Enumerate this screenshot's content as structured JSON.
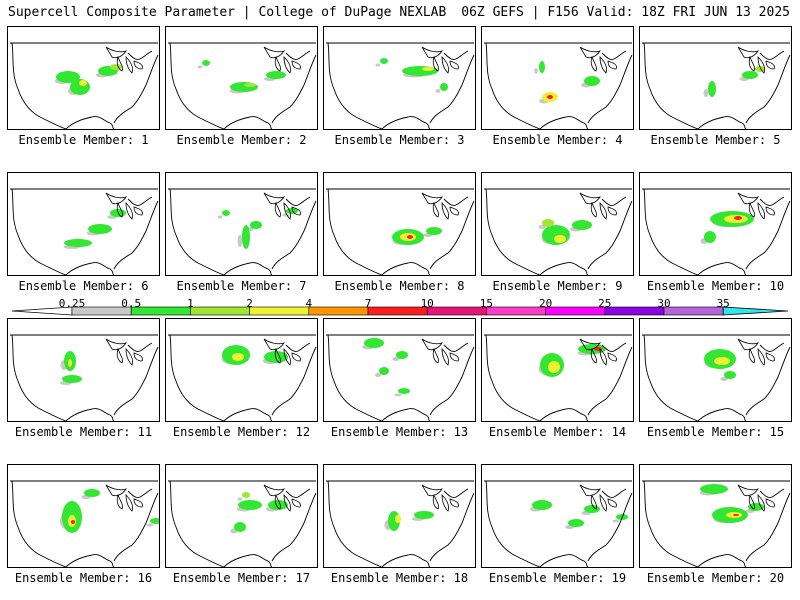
{
  "header": {
    "title_left": "Supercell Composite Parameter | College of DuPage NEXLAB",
    "title_right": "06Z GEFS | F156 Valid: 18Z FRI JUN 13 2025"
  },
  "members": [
    {
      "label": "Ensemble Member: 1"
    },
    {
      "label": "Ensemble Member: 2"
    },
    {
      "label": "Ensemble Member: 3"
    },
    {
      "label": "Ensemble Member: 4"
    },
    {
      "label": "Ensemble Member: 5"
    },
    {
      "label": "Ensemble Member: 6"
    },
    {
      "label": "Ensemble Member: 7"
    },
    {
      "label": "Ensemble Member: 8"
    },
    {
      "label": "Ensemble Member: 9"
    },
    {
      "label": "Ensemble Member: 10"
    },
    {
      "label": "Ensemble Member: 11"
    },
    {
      "label": "Ensemble Member: 12"
    },
    {
      "label": "Ensemble Member: 13"
    },
    {
      "label": "Ensemble Member: 14"
    },
    {
      "label": "Ensemble Member: 15"
    },
    {
      "label": "Ensemble Member: 16"
    },
    {
      "label": "Ensemble Member: 17"
    },
    {
      "label": "Ensemble Member: 18"
    },
    {
      "label": "Ensemble Member: 19"
    },
    {
      "label": "Ensemble Member: 20"
    }
  ],
  "colorbar": {
    "labels": [
      "0.25",
      "0.5",
      "1",
      "2",
      "4",
      "7",
      "10",
      "15",
      "20",
      "25",
      "30",
      "35"
    ],
    "colors": [
      "#c8c8c8",
      "#32e632",
      "#a0e632",
      "#f0f032",
      "#ff9600",
      "#ff1e1e",
      "#e61478",
      "#ff3cc8",
      "#ff00ff",
      "#8c00e6",
      "#b464dc",
      "#32e6f0"
    ]
  }
}
